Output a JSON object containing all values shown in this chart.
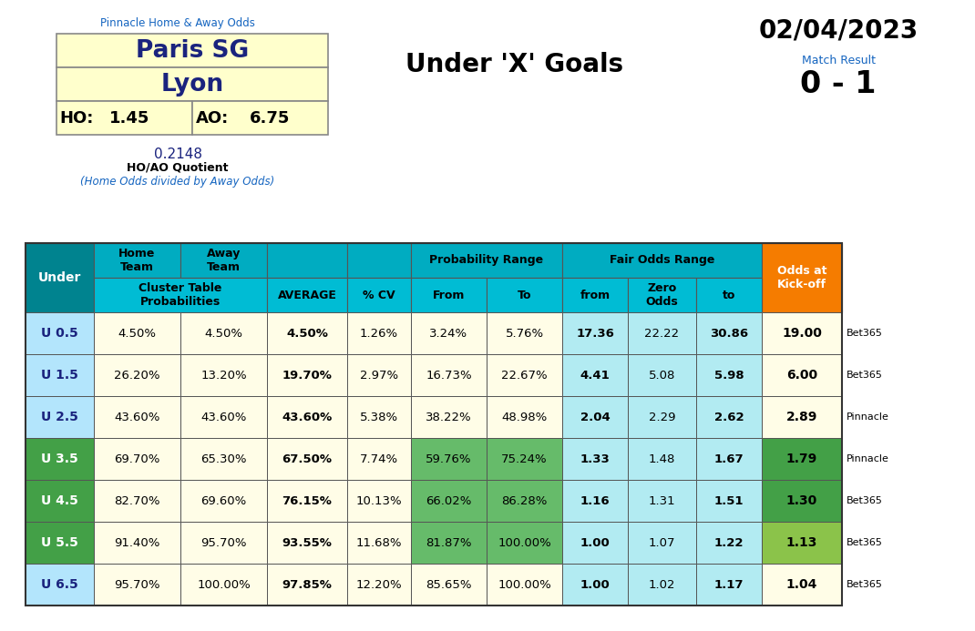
{
  "title_center": "Under 'X' Goals",
  "date": "02/04/2023",
  "match_result_label": "Match Result",
  "match_result": "0 - 1",
  "pinnacle_label": "Pinnacle Home & Away Odds",
  "home_team": "Paris SG",
  "away_team": "Lyon",
  "ho_value": "1.45",
  "ao_value": "6.75",
  "quotient": "0.2148",
  "quotient_label": "HO/AO Quotient",
  "quotient_note": "(Home Odds divided by Away Odds)",
  "under_label": "Under",
  "rows": [
    {
      "under": "U 0.5",
      "home": "4.50%",
      "away": "4.50%",
      "avg": "4.50%",
      "cv": "1.26%",
      "from": "3.24%",
      "to": "5.76%",
      "fair_from": "17.36",
      "zero": "22.22",
      "fair_to": "30.86",
      "kickoff": "19.00",
      "bookie": "Bet365",
      "row_color": "light_blue",
      "kickoff_color": "yellow"
    },
    {
      "under": "U 1.5",
      "home": "26.20%",
      "away": "13.20%",
      "avg": "19.70%",
      "cv": "2.97%",
      "from": "16.73%",
      "to": "22.67%",
      "fair_from": "4.41",
      "zero": "5.08",
      "fair_to": "5.98",
      "kickoff": "6.00",
      "bookie": "Bet365",
      "row_color": "light_blue",
      "kickoff_color": "yellow"
    },
    {
      "under": "U 2.5",
      "home": "43.60%",
      "away": "43.60%",
      "avg": "43.60%",
      "cv": "5.38%",
      "from": "38.22%",
      "to": "48.98%",
      "fair_from": "2.04",
      "zero": "2.29",
      "fair_to": "2.62",
      "kickoff": "2.89",
      "bookie": "Pinnacle",
      "row_color": "light_blue",
      "kickoff_color": "yellow"
    },
    {
      "under": "U 3.5",
      "home": "69.70%",
      "away": "65.30%",
      "avg": "67.50%",
      "cv": "7.74%",
      "from": "59.76%",
      "to": "75.24%",
      "fair_from": "1.33",
      "zero": "1.48",
      "fair_to": "1.67",
      "kickoff": "1.79",
      "bookie": "Pinnacle",
      "row_color": "green",
      "kickoff_color": "green"
    },
    {
      "under": "U 4.5",
      "home": "82.70%",
      "away": "69.60%",
      "avg": "76.15%",
      "cv": "10.13%",
      "from": "66.02%",
      "to": "86.28%",
      "fair_from": "1.16",
      "zero": "1.31",
      "fair_to": "1.51",
      "kickoff": "1.30",
      "bookie": "Bet365",
      "row_color": "green",
      "kickoff_color": "green"
    },
    {
      "under": "U 5.5",
      "home": "91.40%",
      "away": "95.70%",
      "avg": "93.55%",
      "cv": "11.68%",
      "from": "81.87%",
      "to": "100.00%",
      "fair_from": "1.00",
      "zero": "1.07",
      "fair_to": "1.22",
      "kickoff": "1.13",
      "bookie": "Bet365",
      "row_color": "green",
      "kickoff_color": "light_green"
    },
    {
      "under": "U 6.5",
      "home": "95.70%",
      "away": "100.00%",
      "avg": "97.85%",
      "cv": "12.20%",
      "from": "85.65%",
      "to": "100.00%",
      "fair_from": "1.00",
      "zero": "1.02",
      "fair_to": "1.17",
      "kickoff": "1.04",
      "bookie": "Bet365",
      "row_color": "light_blue",
      "kickoff_color": "yellow"
    }
  ]
}
